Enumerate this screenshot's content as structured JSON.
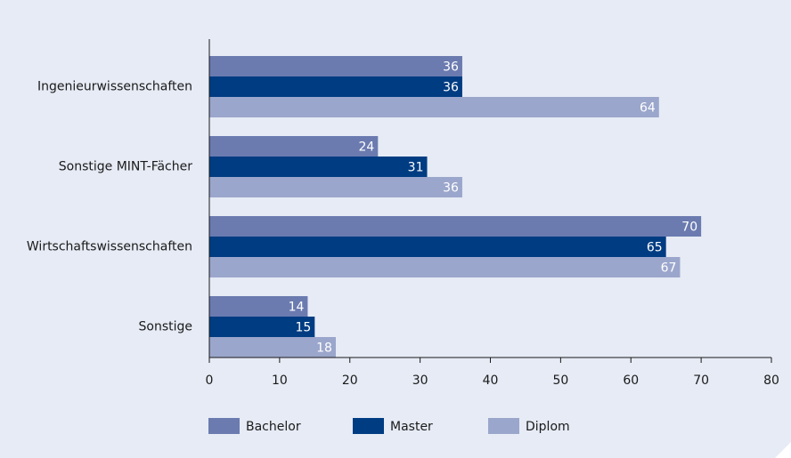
{
  "chart_data": {
    "type": "bar",
    "orientation": "horizontal",
    "categories": [
      "Ingenieurwissenschaften",
      "Sonstige MINT-Fächer",
      "Wirtschaftswissenschaften",
      "Sonstige"
    ],
    "series": [
      {
        "name": "Bachelor",
        "values": [
          36,
          24,
          70,
          14
        ],
        "color": "#6b7bb0"
      },
      {
        "name": "Master",
        "values": [
          36,
          31,
          65,
          15
        ],
        "color": "#003c82"
      },
      {
        "name": "Diplom",
        "values": [
          64,
          36,
          67,
          18
        ],
        "color": "#9ba6cc"
      }
    ],
    "xlim": [
      0,
      80
    ],
    "xticks": [
      0,
      10,
      20,
      30,
      40,
      50,
      60,
      70,
      80
    ],
    "legend_position": "bottom",
    "grid": false,
    "background_color": "#e6ebf5"
  }
}
